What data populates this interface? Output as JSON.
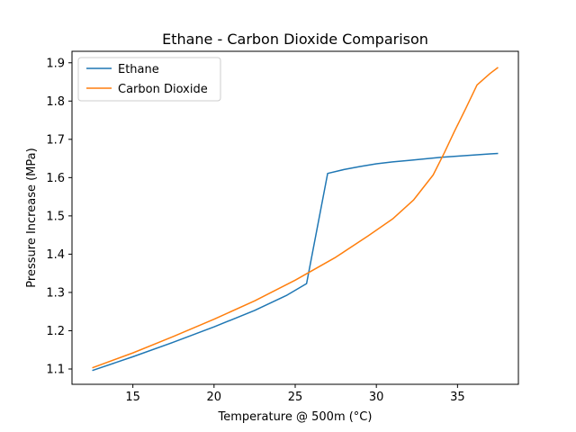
{
  "chart_data": {
    "type": "line",
    "title": "Ethane - Carbon Dioxide Comparison",
    "xlabel": "Temperature @ 500m (°C)",
    "ylabel": "Pressure Increase (MPa)",
    "xlim": [
      11.25,
      38.75
    ],
    "ylim": [
      1.06,
      1.93
    ],
    "xticks": [
      15,
      20,
      25,
      30,
      35
    ],
    "yticks": [
      1.1,
      1.2,
      1.3,
      1.4,
      1.5,
      1.6,
      1.7,
      1.8,
      1.9
    ],
    "xtick_labels": [
      "15",
      "20",
      "25",
      "30",
      "35"
    ],
    "ytick_labels": [
      "1.1",
      "1.2",
      "1.3",
      "1.4",
      "1.5",
      "1.6",
      "1.7",
      "1.8",
      "1.9"
    ],
    "legend_position": "upper-left",
    "grid": false,
    "series": [
      {
        "name": "Ethane",
        "color": "#1f77b4",
        "x": [
          12.5,
          15,
          17.5,
          20,
          22.5,
          24.5,
          25.7,
          27,
          28,
          29,
          30,
          31,
          32,
          33,
          34,
          35,
          36,
          37,
          37.5
        ],
        "y": [
          1.096,
          1.132,
          1.17,
          1.21,
          1.253,
          1.293,
          1.323,
          1.611,
          1.621,
          1.629,
          1.636,
          1.641,
          1.645,
          1.649,
          1.653,
          1.656,
          1.659,
          1.662,
          1.663
        ]
      },
      {
        "name": "Carbon Dioxide",
        "color": "#ff7f0e",
        "x": [
          12.5,
          15,
          17.5,
          20,
          22.5,
          25,
          27.5,
          29.5,
          31,
          32.3,
          33.5,
          34.2,
          34.8,
          35.5,
          36.2,
          37,
          37.5
        ],
        "y": [
          1.103,
          1.142,
          1.185,
          1.23,
          1.278,
          1.332,
          1.392,
          1.448,
          1.492,
          1.542,
          1.607,
          1.666,
          1.72,
          1.78,
          1.842,
          1.872,
          1.888
        ]
      }
    ]
  }
}
